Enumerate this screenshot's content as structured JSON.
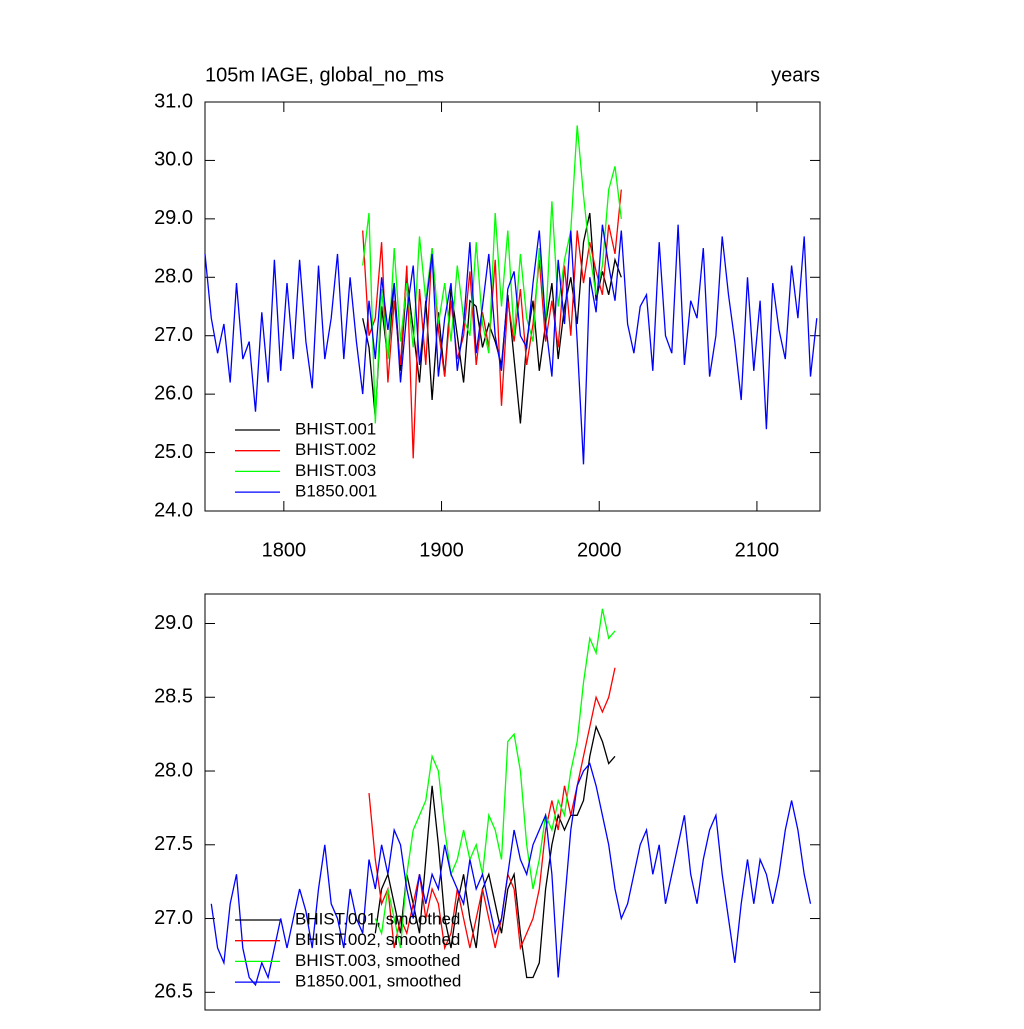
{
  "chart_data": [
    {
      "type": "line",
      "title": "105m IAGE, global_no_ms",
      "right_title": "years",
      "x": [
        1750,
        1754,
        1758,
        1762,
        1766,
        1770,
        1774,
        1778,
        1782,
        1786,
        1790,
        1794,
        1798,
        1802,
        1806,
        1810,
        1814,
        1818,
        1822,
        1826,
        1830,
        1834,
        1838,
        1842,
        1846,
        1850,
        1854,
        1858,
        1862,
        1866,
        1870,
        1874,
        1878,
        1882,
        1886,
        1890,
        1894,
        1898,
        1902,
        1906,
        1910,
        1914,
        1918,
        1922,
        1926,
        1930,
        1934,
        1938,
        1942,
        1946,
        1950,
        1954,
        1958,
        1962,
        1966,
        1970,
        1974,
        1978,
        1982,
        1986,
        1990,
        1994,
        1998,
        2002,
        2006,
        2010,
        2014,
        2018,
        2022,
        2026,
        2030,
        2034,
        2038,
        2042,
        2046,
        2050,
        2054,
        2058,
        2062,
        2066,
        2070,
        2074,
        2078,
        2082,
        2086,
        2090,
        2094,
        2098,
        2102,
        2106,
        2110,
        2114,
        2118,
        2122,
        2126,
        2130,
        2134,
        2138
      ],
      "series": [
        {
          "name": "BHIST.001",
          "color": "#000000",
          "values": [
            null,
            null,
            null,
            null,
            null,
            null,
            null,
            null,
            null,
            null,
            null,
            null,
            null,
            null,
            null,
            null,
            null,
            null,
            null,
            null,
            null,
            null,
            null,
            null,
            null,
            27.3,
            26.8,
            25.6,
            27.5,
            26.6,
            27.9,
            26.4,
            28.0,
            27.1,
            26.2,
            27.6,
            25.9,
            27.4,
            26.3,
            27.8,
            27.0,
            26.2,
            27.6,
            27.5,
            26.8,
            27.2,
            26.9,
            26.5,
            27.7,
            26.6,
            25.5,
            26.9,
            27.6,
            26.4,
            27.2,
            27.9,
            26.6,
            27.5,
            28.0,
            27.2,
            28.6,
            29.1,
            27.6,
            28.1,
            27.7,
            28.3,
            28.0,
            null,
            null,
            null,
            null,
            null,
            null,
            null,
            null,
            null,
            null,
            null,
            null,
            null,
            null,
            null,
            null,
            null,
            null,
            null,
            null,
            null,
            null,
            null,
            null,
            null,
            null,
            null,
            null,
            null,
            null,
            null
          ]
        },
        {
          "name": "BHIST.002",
          "color": "#ff0000",
          "values": [
            null,
            null,
            null,
            null,
            null,
            null,
            null,
            null,
            null,
            null,
            null,
            null,
            null,
            null,
            null,
            null,
            null,
            null,
            null,
            null,
            null,
            null,
            null,
            null,
            null,
            28.8,
            27.0,
            27.3,
            28.6,
            26.2,
            27.6,
            26.5,
            28.2,
            24.9,
            27.8,
            26.5,
            28.5,
            27.1,
            26.3,
            27.6,
            26.6,
            27.0,
            28.1,
            26.5,
            27.4,
            26.8,
            28.3,
            25.8,
            27.6,
            26.9,
            27.8,
            26.5,
            27.2,
            28.3,
            26.9,
            27.6,
            26.8,
            28.2,
            27.0,
            28.8,
            27.9,
            28.6,
            28.1,
            27.7,
            28.9,
            28.4,
            29.5,
            null,
            null,
            null,
            null,
            null,
            null,
            null,
            null,
            null,
            null,
            null,
            null,
            null,
            null,
            null,
            null,
            null,
            null,
            null,
            null,
            null,
            null,
            null,
            null,
            null,
            null,
            null,
            null,
            null,
            null,
            null
          ]
        },
        {
          "name": "BHIST.003",
          "color": "#00ff00",
          "values": [
            null,
            null,
            null,
            null,
            null,
            null,
            null,
            null,
            null,
            null,
            null,
            null,
            null,
            null,
            null,
            null,
            null,
            null,
            null,
            null,
            null,
            null,
            null,
            null,
            null,
            28.2,
            29.1,
            25.5,
            27.8,
            26.6,
            28.5,
            26.9,
            27.9,
            26.8,
            28.7,
            27.6,
            28.5,
            27.2,
            27.9,
            26.9,
            28.2,
            27.3,
            27.0,
            28.6,
            27.2,
            26.7,
            29.1,
            27.5,
            28.8,
            27.0,
            28.4,
            27.3,
            26.9,
            28.5,
            27.2,
            29.3,
            27.5,
            28.3,
            28.8,
            30.6,
            29.4,
            28.4,
            27.7,
            28.2,
            29.5,
            29.9,
            29.0,
            null,
            null,
            null,
            null,
            null,
            null,
            null,
            null,
            null,
            null,
            null,
            null,
            null,
            null,
            null,
            null,
            null,
            null,
            null,
            null,
            null,
            null,
            null,
            null,
            null,
            null,
            null,
            null,
            null,
            null,
            null
          ]
        },
        {
          "name": "B1850.001",
          "color": "#0000ff",
          "values": [
            28.4,
            27.3,
            26.7,
            27.2,
            26.2,
            27.9,
            26.6,
            26.9,
            25.7,
            27.4,
            26.2,
            28.3,
            26.4,
            27.9,
            26.6,
            28.3,
            26.9,
            26.1,
            28.2,
            26.6,
            27.3,
            28.4,
            26.6,
            28.0,
            26.9,
            26.0,
            27.6,
            26.6,
            28.0,
            27.1,
            27.9,
            26.2,
            27.4,
            28.2,
            26.5,
            27.5,
            28.4,
            26.3,
            27.3,
            27.9,
            26.4,
            27.2,
            28.6,
            26.7,
            27.5,
            28.4,
            27.0,
            26.4,
            27.8,
            28.1,
            27.0,
            26.8,
            27.9,
            28.8,
            27.2,
            26.3,
            28.3,
            27.2,
            28.8,
            26.9,
            24.8,
            28.0,
            27.4,
            28.9,
            28.2,
            27.6,
            28.8,
            27.2,
            26.7,
            27.5,
            27.7,
            26.4,
            28.6,
            27.0,
            26.7,
            28.9,
            26.5,
            27.6,
            27.3,
            28.5,
            26.3,
            27.0,
            28.7,
            27.7,
            26.9,
            25.9,
            28.0,
            26.4,
            27.6,
            25.4,
            27.9,
            27.1,
            26.6,
            28.2,
            27.3,
            28.7,
            26.3,
            27.3
          ]
        }
      ],
      "xlim": [
        1750,
        2140
      ],
      "ylim": [
        24,
        31
      ],
      "xticks": [
        1800,
        1900,
        2000,
        2100
      ],
      "yticks": [
        {
          "value": 24,
          "label": "24.0"
        },
        {
          "value": 25,
          "label": "25.0"
        },
        {
          "value": 26,
          "label": "26.0"
        },
        {
          "value": 27,
          "label": "27.0"
        },
        {
          "value": 28,
          "label": "28.0"
        },
        {
          "value": 29,
          "label": "29.0"
        },
        {
          "value": 30,
          "label": "30.0"
        },
        {
          "value": 31,
          "label": "31.0"
        }
      ],
      "legend": "lower left"
    },
    {
      "type": "line",
      "x": [
        1750,
        1754,
        1758,
        1762,
        1766,
        1770,
        1774,
        1778,
        1782,
        1786,
        1790,
        1794,
        1798,
        1802,
        1806,
        1810,
        1814,
        1818,
        1822,
        1826,
        1830,
        1834,
        1838,
        1842,
        1846,
        1850,
        1854,
        1858,
        1862,
        1866,
        1870,
        1874,
        1878,
        1882,
        1886,
        1890,
        1894,
        1898,
        1902,
        1906,
        1910,
        1914,
        1918,
        1922,
        1926,
        1930,
        1934,
        1938,
        1942,
        1946,
        1950,
        1954,
        1958,
        1962,
        1966,
        1970,
        1974,
        1978,
        1982,
        1986,
        1990,
        1994,
        1998,
        2002,
        2006,
        2010,
        2014,
        2018,
        2022,
        2026,
        2030,
        2034,
        2038,
        2042,
        2046,
        2050,
        2054,
        2058,
        2062,
        2066,
        2070,
        2074,
        2078,
        2082,
        2086,
        2090,
        2094,
        2098,
        2102,
        2106,
        2110,
        2114,
        2118,
        2122,
        2126,
        2130,
        2134,
        2138
      ],
      "series": [
        {
          "name": "BHIST.001, smoothed",
          "color": "#000000",
          "values": [
            null,
            null,
            null,
            null,
            null,
            null,
            null,
            null,
            null,
            null,
            null,
            null,
            null,
            null,
            null,
            null,
            null,
            null,
            null,
            null,
            null,
            null,
            null,
            null,
            null,
            null,
            null,
            26.9,
            27.2,
            27.3,
            27.1,
            26.9,
            27.3,
            27.1,
            26.9,
            27.4,
            27.9,
            27.5,
            27.0,
            26.8,
            27.1,
            27.3,
            27.0,
            26.8,
            27.2,
            27.3,
            27.1,
            26.9,
            27.2,
            27.3,
            26.9,
            26.6,
            26.6,
            26.7,
            27.2,
            27.5,
            27.7,
            27.6,
            27.7,
            27.7,
            27.8,
            28.1,
            28.3,
            28.2,
            28.05,
            28.1,
            null,
            null,
            null,
            null,
            null,
            null,
            null,
            null,
            null,
            null,
            null,
            null,
            null,
            null,
            null,
            null,
            null,
            null,
            null,
            null,
            null,
            null,
            null,
            null,
            null,
            null,
            null,
            null,
            null,
            null,
            null,
            null
          ]
        },
        {
          "name": "BHIST.002, smoothed",
          "color": "#ff0000",
          "values": [
            null,
            null,
            null,
            null,
            null,
            null,
            null,
            null,
            null,
            null,
            null,
            null,
            null,
            null,
            null,
            null,
            null,
            null,
            null,
            null,
            null,
            null,
            null,
            null,
            null,
            null,
            27.85,
            27.4,
            27.1,
            27.2,
            26.8,
            27.0,
            26.9,
            27.1,
            27.3,
            27.0,
            27.2,
            27.1,
            26.8,
            26.9,
            27.2,
            27.0,
            26.8,
            27.0,
            27.2,
            27.0,
            26.8,
            27.0,
            27.3,
            27.2,
            26.8,
            26.9,
            27.0,
            27.2,
            27.6,
            27.8,
            27.6,
            27.9,
            27.7,
            27.9,
            28.1,
            28.3,
            28.5,
            28.4,
            28.5,
            28.7,
            null,
            null,
            null,
            null,
            null,
            null,
            null,
            null,
            null,
            null,
            null,
            null,
            null,
            null,
            null,
            null,
            null,
            null,
            null,
            null,
            null,
            null,
            null,
            null,
            null,
            null,
            null,
            null,
            null,
            null,
            null,
            null
          ]
        },
        {
          "name": "BHIST.003, smoothed",
          "color": "#00ff00",
          "values": [
            null,
            null,
            null,
            null,
            null,
            null,
            null,
            null,
            null,
            null,
            null,
            null,
            null,
            null,
            null,
            null,
            null,
            null,
            null,
            null,
            null,
            null,
            null,
            null,
            null,
            null,
            null,
            27.0,
            26.9,
            27.2,
            27.0,
            26.8,
            27.3,
            27.6,
            27.7,
            27.8,
            28.1,
            28.0,
            27.6,
            27.3,
            27.4,
            27.6,
            27.4,
            27.5,
            27.3,
            27.7,
            27.6,
            27.4,
            28.2,
            28.25,
            28.0,
            27.5,
            27.2,
            27.4,
            27.7,
            27.6,
            27.8,
            27.7,
            28.0,
            28.2,
            28.6,
            28.9,
            28.8,
            29.1,
            28.9,
            28.95,
            null,
            null,
            null,
            null,
            null,
            null,
            null,
            null,
            null,
            null,
            null,
            null,
            null,
            null,
            null,
            null,
            null,
            null,
            null,
            null,
            null,
            null,
            null,
            null,
            null,
            null,
            null,
            null,
            null,
            null,
            null,
            null
          ]
        },
        {
          "name": "B1850.001, smoothed",
          "color": "#0000ff",
          "values": [
            null,
            27.1,
            26.8,
            26.7,
            27.1,
            27.3,
            26.8,
            26.6,
            26.55,
            26.7,
            26.6,
            26.8,
            27.0,
            26.8,
            27.0,
            27.2,
            27.05,
            26.8,
            27.2,
            27.5,
            27.1,
            27.0,
            26.8,
            27.2,
            27.0,
            26.9,
            27.4,
            27.2,
            27.5,
            27.3,
            27.6,
            27.5,
            27.2,
            27.0,
            27.3,
            27.1,
            27.3,
            27.2,
            27.5,
            27.3,
            27.2,
            27.1,
            27.4,
            27.2,
            27.3,
            27.1,
            26.9,
            27.0,
            27.3,
            27.6,
            27.4,
            27.3,
            27.5,
            27.6,
            27.7,
            27.3,
            26.6,
            27.1,
            27.6,
            27.9,
            28.0,
            28.05,
            27.9,
            27.7,
            27.5,
            27.2,
            27.0,
            27.1,
            27.3,
            27.5,
            27.6,
            27.3,
            27.5,
            27.1,
            27.3,
            27.5,
            27.7,
            27.3,
            27.1,
            27.4,
            27.6,
            27.7,
            27.3,
            27.0,
            26.7,
            27.1,
            27.4,
            27.1,
            27.4,
            27.3,
            27.1,
            27.3,
            27.6,
            27.8,
            27.6,
            27.3,
            27.1,
            null
          ]
        }
      ],
      "xlim": [
        1750,
        2140
      ],
      "ylim": [
        26.38,
        29.2
      ],
      "yticks": [
        {
          "value": 26.5,
          "label": "26.5"
        },
        {
          "value": 27,
          "label": "27.0"
        },
        {
          "value": 27.5,
          "label": "27.5"
        },
        {
          "value": 28,
          "label": "28.0"
        },
        {
          "value": 28.5,
          "label": "28.5"
        },
        {
          "value": 29,
          "label": "29.0"
        }
      ],
      "legend": "lower left"
    }
  ]
}
